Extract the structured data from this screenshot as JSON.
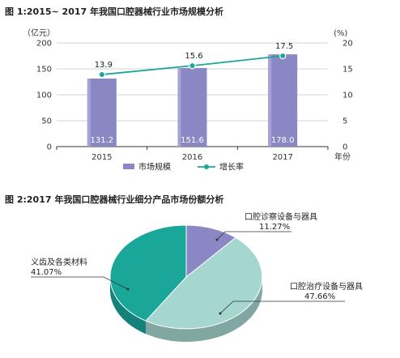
{
  "figure1": {
    "title": "图 1:2015~ 2017 年我国口腔器械行业市场规模分析"
  },
  "figure2": {
    "title": "图 2:2017 年我国口腔器械行业细分产品市场份额分析"
  },
  "chart_data": [
    {
      "type": "bar",
      "categories": [
        "2015",
        "2016",
        "2017"
      ],
      "xlabel": "年份",
      "ylabel_left": "（亿元）",
      "ylabel_right": "(%)",
      "ylim_left": [
        0,
        200
      ],
      "yticks_left": [
        "0",
        "50",
        "100",
        "150",
        "200"
      ],
      "ylim_right": [
        0,
        20
      ],
      "yticks_right": [
        "0",
        "5",
        "10",
        "15",
        "20"
      ],
      "grid": true,
      "legend_position": "bottom",
      "series": [
        {
          "name": "市场规模",
          "kind": "bar",
          "axis": "left",
          "color": "#8b86c4",
          "values": [
            131.2,
            151.6,
            178.0
          ],
          "labels": [
            "131.2",
            "151.6",
            "178.0"
          ]
        },
        {
          "name": "增长率",
          "kind": "line",
          "axis": "right",
          "color": "#1aa79a",
          "values": [
            13.9,
            15.6,
            17.5
          ],
          "labels": [
            "13.9",
            "15.6",
            "17.5"
          ]
        }
      ]
    },
    {
      "type": "pie",
      "style": "3d",
      "slices": [
        {
          "label": "口腔诊察设备与器具",
          "value": 11.27,
          "value_label": "11.27%",
          "color": "#8b86c4"
        },
        {
          "label": "口腔治疗设备与器具",
          "value": 47.66,
          "value_label": "47.66%",
          "color": "#a6d6d0"
        },
        {
          "label": "义齿及各类材料",
          "value": 41.07,
          "value_label": "41.07%",
          "color": "#1aa79a"
        }
      ]
    }
  ]
}
